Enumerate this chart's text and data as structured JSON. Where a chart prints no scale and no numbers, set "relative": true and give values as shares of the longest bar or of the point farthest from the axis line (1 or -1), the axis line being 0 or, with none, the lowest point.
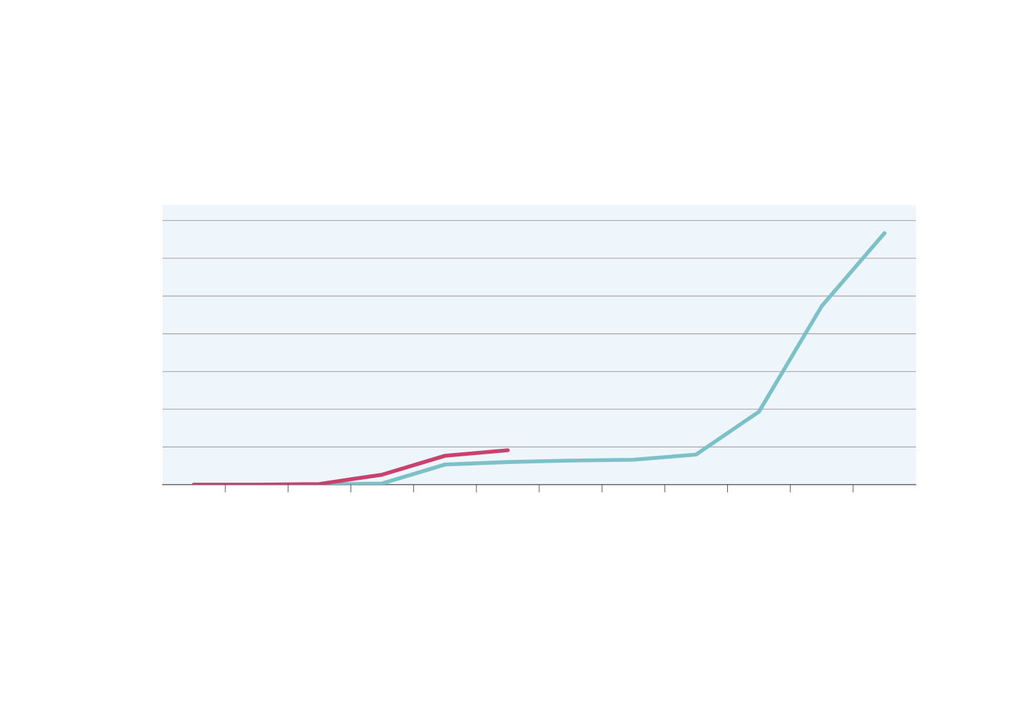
{
  "chart_data": {
    "type": "line",
    "relative": true,
    "grid": "y",
    "categories": [
      null,
      null,
      null,
      null,
      null,
      null,
      null,
      null,
      null,
      null,
      null,
      null
    ],
    "series": [
      {
        "color": "#7cc1c8",
        "values": [
          0,
          0,
          0,
          0.005,
          0.08,
          0.09,
          0.096,
          0.099,
          0.12,
          0.29,
          0.71,
          1
        ]
      },
      {
        "color": "#c9416f",
        "values": [
          0,
          0,
          0.003,
          0.04,
          0.115,
          0.137,
          null,
          null,
          null,
          null,
          null,
          null
        ]
      }
    ]
  }
}
